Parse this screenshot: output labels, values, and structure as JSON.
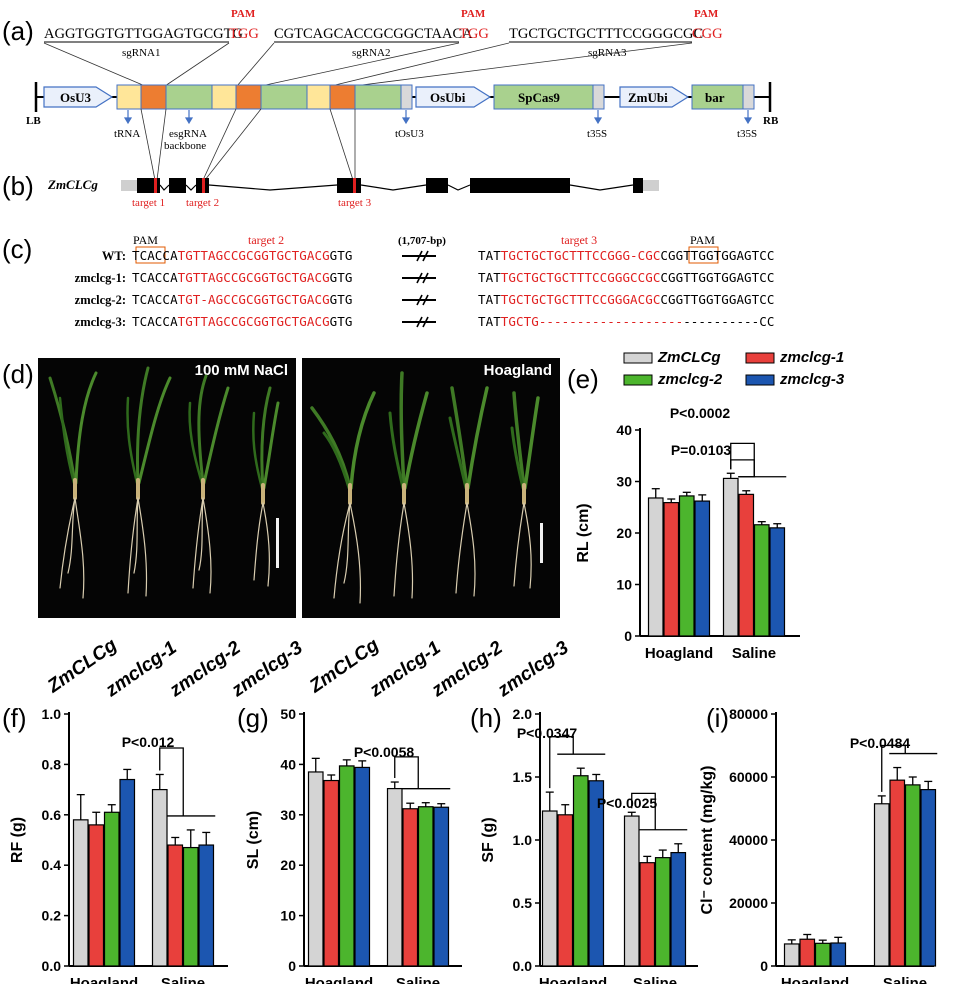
{
  "panel_labels": {
    "a": "(a)",
    "b": "(b)",
    "c": "(c)",
    "d": "(d)",
    "e": "(e)",
    "f": "(f)",
    "g": "(g)",
    "h": "(h)",
    "i": "(i)"
  },
  "panel_a": {
    "sgrna1": {
      "seq": "AGGTGGTGTTGGAGTGCGTG",
      "pam": "TGG",
      "name": "sgRNA1"
    },
    "sgrna2": {
      "seq": "CGTCAGCACCGCGGCTAACA",
      "pam": "TGG",
      "name": "sgRNA2"
    },
    "sgrna3": {
      "seq": "TGCTGCTGCTTTCCGGGCGC",
      "pam": "CGG",
      "name": "sgRNA3"
    },
    "pam_label": "PAM",
    "lb": "LB",
    "rb": "RB",
    "osu3": "OsU3",
    "osubi": "OsUbi",
    "spcas9": "SpCas9",
    "zmubi": "ZmUbi",
    "bar": "bar",
    "trna": "tRNA",
    "esgrna_1": "esgRNA",
    "esgrna_2": "backbone",
    "tosu3": "tOsU3",
    "t35s_1": "t35S",
    "t35s_2": "t35S"
  },
  "panel_b": {
    "gene": "ZmCLCg",
    "target1": "target 1",
    "target2": "target 2",
    "target3": "target 3"
  },
  "panel_c": {
    "pam_left": "PAM",
    "pam_right": "PAM",
    "target2": "target 2",
    "target3": "target 3",
    "gap": "(1,707-bp)",
    "rows": [
      {
        "name": "WT:",
        "a": "TCA",
        "b": "CCA",
        "c": "TGTTAGCCGCGGTGCTGACG",
        "d": "GTG",
        "e": "TAT",
        "f": "TGCTGCTGCTTTCCGGG-CGC",
        "g": "CGG",
        "h": "TTGGTGGAGTCC"
      },
      {
        "name": "zmclcg-1:",
        "a": "TCA",
        "b": "CCA",
        "c": "TGTTAGCCGCGGTGCTGACG",
        "d": "GTG",
        "e": "TAT",
        "f": "TGCTGCTGCTTTCCGGGCCGC",
        "g": "CGG",
        "h": "TTGGTGGAGTCC"
      },
      {
        "name": "zmclcg-2:",
        "a": "TCA",
        "b": "CCA",
        "c": "TGT-AGCCGCGGTGCTGACG",
        "d": "GTG",
        "e": "TAT",
        "f": "TGCTGCTGCTTTCCGGGACGC",
        "g": "CGG",
        "h": "TTGGTGGAGTCC"
      },
      {
        "name": "zmclcg-3:",
        "a": "TCA",
        "b": "CCA",
        "c": "TGTTAGCCGCGGTGCTGACG",
        "d": "GTG",
        "e": "TAT",
        "f": "TGCTG----------------",
        "g": "---",
        "h": "----------CC"
      }
    ]
  },
  "panel_d": {
    "cond_left": "100 mM NaCl",
    "cond_right": "Hoagland",
    "labels": [
      "ZmCLCg",
      "zmclcg-1",
      "zmclcg-2",
      "zmclcg-3",
      "ZmCLCg",
      "zmclcg-1",
      "zmclcg-2",
      "zmclcg-3"
    ]
  },
  "legend": [
    {
      "name": "ZmCLCg",
      "color": "#d4d4d4"
    },
    {
      "name": "zmclcg-1",
      "color": "#e8403c"
    },
    {
      "name": "zmclcg-2",
      "color": "#4cb52d"
    },
    {
      "name": "zmclcg-3",
      "color": "#1c56b0"
    }
  ],
  "chart_data": [
    {
      "id": "e",
      "type": "bar",
      "categories": [
        "Hoagland",
        "Saline"
      ],
      "ylabel": "RL (cm)",
      "ylim": [
        0,
        40
      ],
      "yticks": [
        0,
        10,
        20,
        30,
        40
      ],
      "series": [
        {
          "name": "ZmCLCg",
          "values": [
            26.8,
            30.6
          ],
          "err": [
            1.8,
            1.0
          ]
        },
        {
          "name": "zmclcg-1",
          "values": [
            25.9,
            27.5
          ],
          "err": [
            0.7,
            0.7
          ]
        },
        {
          "name": "zmclcg-2",
          "values": [
            27.2,
            21.6
          ],
          "err": [
            0.7,
            0.6
          ]
        },
        {
          "name": "zmclcg-3",
          "values": [
            26.2,
            21.0
          ],
          "err": [
            1.2,
            0.8
          ]
        }
      ],
      "annotations": [
        "P=0.0103",
        "P<0.0002"
      ]
    },
    {
      "id": "f",
      "type": "bar",
      "categories": [
        "Hoagland",
        "Saline"
      ],
      "ylabel": "RF (g)",
      "ylim": [
        0,
        1.0
      ],
      "yticks": [
        "0.0",
        "0.2",
        "0.4",
        "0.6",
        "0.8",
        "1.0"
      ],
      "series": [
        {
          "name": "ZmCLCg",
          "values": [
            0.58,
            0.7
          ],
          "err": [
            0.1,
            0.06
          ]
        },
        {
          "name": "zmclcg-1",
          "values": [
            0.56,
            0.48
          ],
          "err": [
            0.05,
            0.03
          ]
        },
        {
          "name": "zmclcg-2",
          "values": [
            0.61,
            0.47
          ],
          "err": [
            0.03,
            0.07
          ]
        },
        {
          "name": "zmclcg-3",
          "values": [
            0.74,
            0.48
          ],
          "err": [
            0.04,
            0.05
          ]
        }
      ],
      "annotations": [
        "P<0.012"
      ]
    },
    {
      "id": "g",
      "type": "bar",
      "categories": [
        "Hoagland",
        "Saline"
      ],
      "ylabel": "SL (cm)",
      "ylim": [
        0,
        50
      ],
      "yticks": [
        0,
        10,
        20,
        30,
        40,
        50
      ],
      "series": [
        {
          "name": "ZmCLCg",
          "values": [
            38.5,
            35.2
          ],
          "err": [
            2.7,
            1.3
          ]
        },
        {
          "name": "zmclcg-1",
          "values": [
            36.8,
            31.2
          ],
          "err": [
            1.1,
            1.1
          ]
        },
        {
          "name": "zmclcg-2",
          "values": [
            39.7,
            31.6
          ],
          "err": [
            1.2,
            0.8
          ]
        },
        {
          "name": "zmclcg-3",
          "values": [
            39.4,
            31.5
          ],
          "err": [
            1.3,
            0.7
          ]
        }
      ],
      "annotations": [
        "P<0.0058"
      ]
    },
    {
      "id": "h",
      "type": "bar",
      "categories": [
        "Hoagland",
        "Saline"
      ],
      "ylabel": "SF (g)",
      "ylim": [
        0,
        2.0
      ],
      "yticks": [
        "0.0",
        "0.5",
        "1.0",
        "1.5",
        "2.0"
      ],
      "series": [
        {
          "name": "ZmCLCg",
          "values": [
            1.23,
            1.19
          ],
          "err": [
            0.15,
            0.03
          ]
        },
        {
          "name": "zmclcg-1",
          "values": [
            1.2,
            0.82
          ],
          "err": [
            0.08,
            0.05
          ]
        },
        {
          "name": "zmclcg-2",
          "values": [
            1.51,
            0.86
          ],
          "err": [
            0.06,
            0.06
          ]
        },
        {
          "name": "zmclcg-3",
          "values": [
            1.47,
            0.9
          ],
          "err": [
            0.05,
            0.07
          ]
        }
      ],
      "annotations": [
        "P<0.0347",
        "P<0.0025"
      ]
    },
    {
      "id": "i",
      "type": "bar",
      "categories": [
        "Hoagland",
        "Saline"
      ],
      "ylabel": "Cl⁻ content (mg/kg)",
      "ylim": [
        0,
        80000
      ],
      "yticks": [
        0,
        20000,
        40000,
        60000,
        80000
      ],
      "series": [
        {
          "name": "ZmCLCg",
          "values": [
            7000,
            51500
          ],
          "err": [
            1300,
            2500
          ]
        },
        {
          "name": "zmclcg-1",
          "values": [
            8500,
            59000
          ],
          "err": [
            1500,
            4000
          ]
        },
        {
          "name": "zmclcg-2",
          "values": [
            7200,
            57500
          ],
          "err": [
            1000,
            2500
          ]
        },
        {
          "name": "zmclcg-3",
          "values": [
            7300,
            56000
          ],
          "err": [
            1800,
            2600
          ]
        }
      ],
      "annotations": [
        "P<0.0484"
      ]
    }
  ]
}
